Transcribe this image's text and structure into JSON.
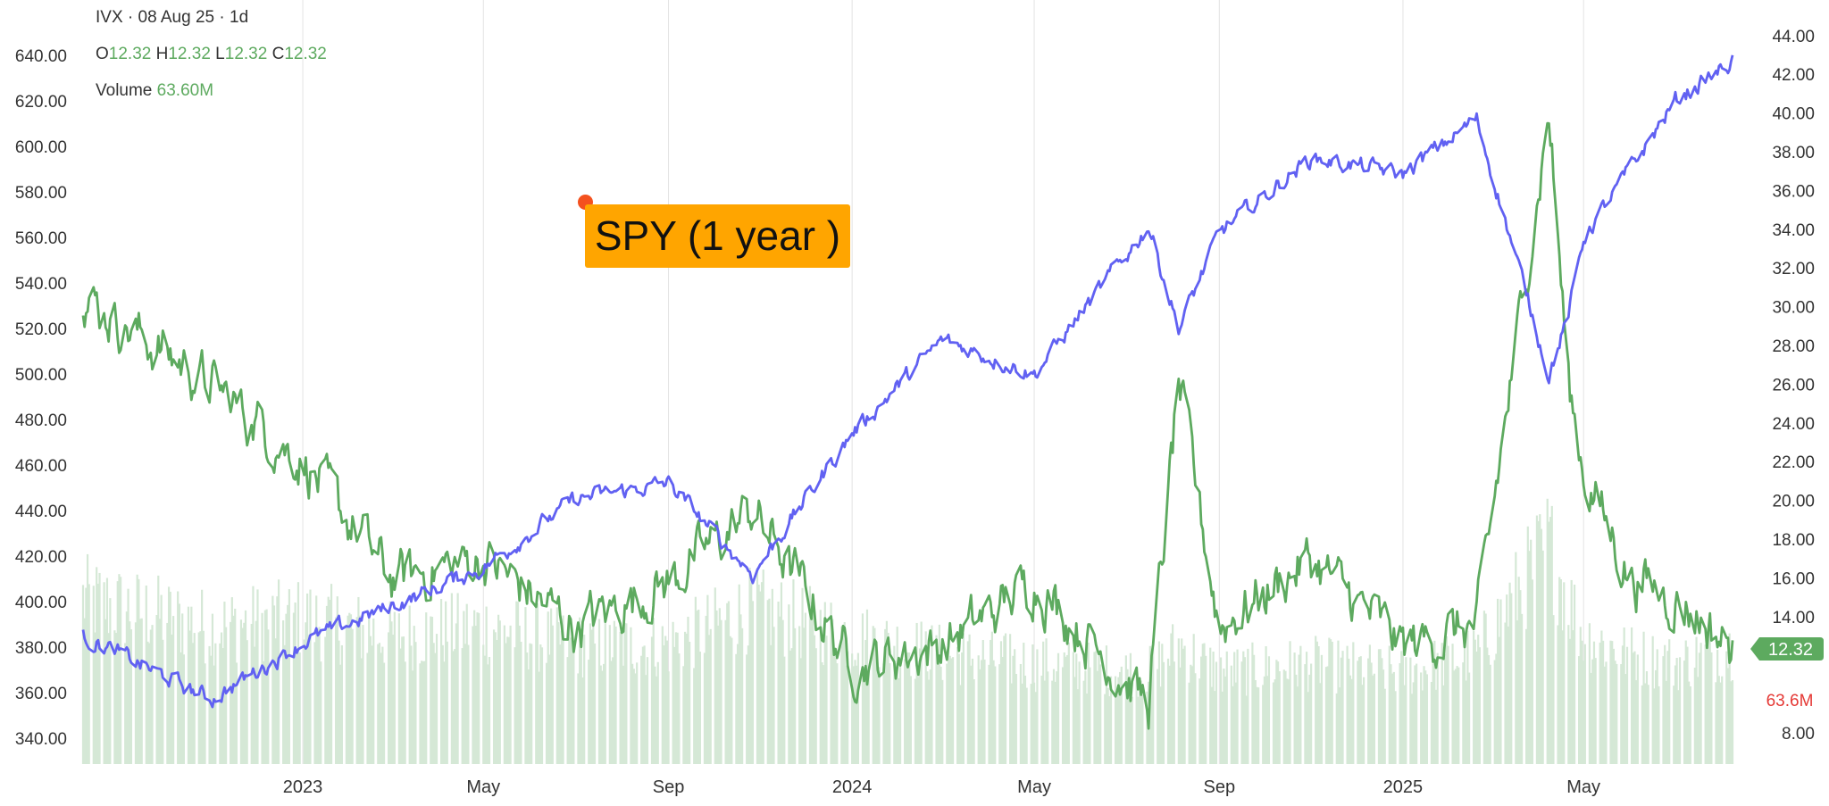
{
  "header": {
    "symbol": "IVX",
    "date": "08 Aug 25",
    "interval": "1d",
    "ohlc": {
      "o_label": "O",
      "o": "12.32",
      "h_label": "H",
      "h": "12.32",
      "l_label": "L",
      "l": "12.32",
      "c_label": "C",
      "c": "12.32"
    },
    "volume_label": "Volume",
    "volume": "63.60M"
  },
  "annotation": {
    "text": "SPY (1 year )"
  },
  "badges": {
    "last_ivx": "12.32",
    "last_volume": "63.6M"
  },
  "colors": {
    "spy_line": "#6161f2",
    "ivx_line": "#5daa5f",
    "volume_bars": "#d5e8d6",
    "badge_bg": "#5daa5f",
    "volume_text": "#e53935",
    "annotation_bg": "#ffa500",
    "annotation_dot": "#f4511e",
    "grid": "#e3e3e3"
  },
  "chart_data": {
    "type": "line",
    "title": "",
    "x_ticks": [
      "2023",
      "May",
      "Sep",
      "2024",
      "May",
      "Sep",
      "2025",
      "May"
    ],
    "x": [
      "2022-08-08",
      "2022-11-01",
      "2023-01-01",
      "2023-03-01",
      "2023-05-01",
      "2023-07-01",
      "2023-09-01",
      "2023-10-27",
      "2024-01-01",
      "2024-03-01",
      "2024-05-01",
      "2024-07-16",
      "2024-08-05",
      "2024-09-01",
      "2024-11-01",
      "2025-01-01",
      "2025-02-19",
      "2025-04-08",
      "2025-04-21",
      "2025-05-01",
      "2025-06-01",
      "2025-07-01",
      "2025-08-08"
    ],
    "y_left": {
      "label": "",
      "ticks": [
        "340.00",
        "360.00",
        "380.00",
        "400.00",
        "420.00",
        "440.00",
        "460.00",
        "480.00",
        "500.00",
        "520.00",
        "540.00",
        "560.00",
        "580.00",
        "600.00",
        "620.00",
        "640.00"
      ],
      "range": [
        340,
        640
      ]
    },
    "y_right": {
      "label": "",
      "ticks": [
        "8.00",
        "14.00",
        "16.00",
        "18.00",
        "20.00",
        "22.00",
        "24.00",
        "26.00",
        "28.00",
        "30.00",
        "32.00",
        "34.00",
        "36.00",
        "38.00",
        "40.00",
        "42.00",
        "44.00"
      ],
      "range": [
        8,
        44
      ]
    },
    "grid": true,
    "series": [
      {
        "name": "SPY",
        "axis": "left",
        "values": [
          385,
          357,
          382,
          398,
          415,
          445,
          452,
          412,
          474,
          515,
          500,
          565,
          520,
          562,
          595,
          588,
          612,
          500,
          526,
          560,
          590,
          620,
          637
        ]
      },
      {
        "name": "IVX",
        "axis": "right",
        "values": [
          30.5,
          26.0,
          22.0,
          16.0,
          17.0,
          13.5,
          15.8,
          19.5,
          11.5,
          12.5,
          15.8,
          9.5,
          26.0,
          13.5,
          17.0,
          12.5,
          13.5,
          40.0,
          26.0,
          21.5,
          16.0,
          15.0,
          12.32
        ]
      },
      {
        "name": "Volume",
        "axis": "volume",
        "values": [
          90,
          75,
          80,
          70,
          75,
          65,
          65,
          85,
          70,
          60,
          55,
          50,
          65,
          50,
          55,
          50,
          60,
          120,
          90,
          70,
          60,
          55,
          63.6
        ]
      }
    ]
  }
}
